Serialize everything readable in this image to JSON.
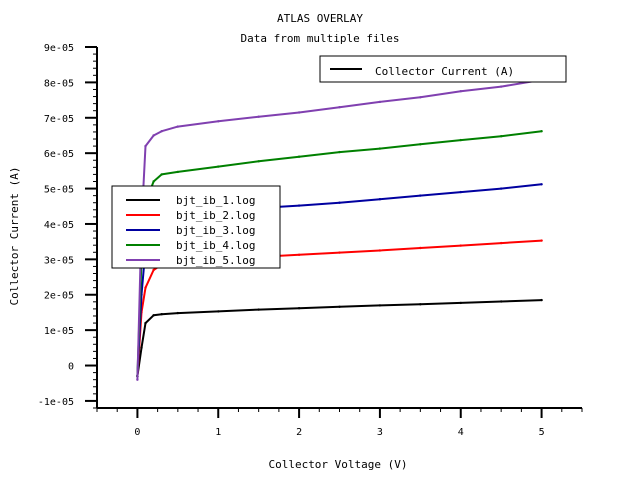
{
  "chart_data": {
    "type": "line",
    "title": "ATLAS OVERLAY",
    "subtitle": "Data from multiple files",
    "xlabel": "Collector Voltage (V)",
    "ylabel": "Collector Current (A)",
    "xlim": [
      -0.5,
      5.5
    ],
    "ylim": [
      -1.2e-05,
      9e-05
    ],
    "x_ticks": [
      0,
      1,
      2,
      3,
      4,
      5
    ],
    "x_tick_labels": [
      "0",
      "1",
      "2",
      "3",
      "4",
      "5"
    ],
    "y_ticks": [
      -1e-05,
      0,
      1e-05,
      2e-05,
      3e-05,
      4e-05,
      5e-05,
      6e-05,
      7e-05,
      8e-05,
      9e-05
    ],
    "y_tick_labels": [
      "-1e-05",
      "0",
      "1e-05",
      "2e-05",
      "3e-05",
      "4e-05",
      "5e-05",
      "6e-05",
      "7e-05",
      "8e-05",
      "9e-05"
    ],
    "grid": false,
    "legend_top": {
      "label": "Collector Current (A)",
      "placement": "top-right"
    },
    "legend_placement": "left",
    "series": [
      {
        "name": "bjt_ib_1.log",
        "color": "#000000",
        "x": [
          0,
          0.05,
          0.1,
          0.2,
          0.3,
          0.5,
          1,
          1.5,
          2,
          2.5,
          3,
          3.5,
          4,
          4.5,
          5
        ],
        "y": [
          -3e-06,
          5e-06,
          1.2e-05,
          1.42e-05,
          1.45e-05,
          1.48e-05,
          1.53e-05,
          1.58e-05,
          1.62e-05,
          1.66e-05,
          1.7e-05,
          1.73e-05,
          1.77e-05,
          1.81e-05,
          1.85e-05
        ]
      },
      {
        "name": "bjt_ib_2.log",
        "color": "#ff0000",
        "x": [
          0,
          0.05,
          0.1,
          0.2,
          0.3,
          0.5,
          1,
          1.5,
          2,
          2.5,
          3,
          3.5,
          4,
          4.5,
          5
        ],
        "y": [
          -3e-06,
          1.5e-05,
          2.2e-05,
          2.7e-05,
          2.85e-05,
          2.92e-05,
          3e-05,
          3.07e-05,
          3.13e-05,
          3.19e-05,
          3.25e-05,
          3.32e-05,
          3.39e-05,
          3.46e-05,
          3.53e-05
        ]
      },
      {
        "name": "bjt_ib_3.log",
        "color": "#0000a0",
        "x": [
          0,
          0.05,
          0.1,
          0.2,
          0.3,
          0.5,
          1,
          1.5,
          2,
          2.5,
          3,
          3.5,
          4,
          4.5,
          5
        ],
        "y": [
          -3e-06,
          2e-05,
          3.3e-05,
          3.9e-05,
          4.1e-05,
          4.22e-05,
          4.35e-05,
          4.45e-05,
          4.52e-05,
          4.6e-05,
          4.7e-05,
          4.8e-05,
          4.9e-05,
          5e-05,
          5.12e-05
        ]
      },
      {
        "name": "bjt_ib_4.log",
        "color": "#008000",
        "x": [
          0,
          0.05,
          0.1,
          0.2,
          0.3,
          0.5,
          1,
          1.5,
          2,
          2.5,
          3,
          3.5,
          4,
          4.5,
          5
        ],
        "y": [
          -3e-06,
          3e-05,
          4.6e-05,
          5.2e-05,
          5.4e-05,
          5.47e-05,
          5.62e-05,
          5.77e-05,
          5.9e-05,
          6.03e-05,
          6.13e-05,
          6.25e-05,
          6.37e-05,
          6.48e-05,
          6.62e-05
        ]
      },
      {
        "name": "bjt_ib_5.log",
        "color": "#8040b0",
        "x": [
          0,
          0.05,
          0.1,
          0.2,
          0.3,
          0.5,
          1,
          1.5,
          2,
          2.5,
          3,
          3.5,
          4,
          4.5,
          5
        ],
        "y": [
          -4e-06,
          4e-05,
          6.2e-05,
          6.5e-05,
          6.62e-05,
          6.75e-05,
          6.9e-05,
          7.03e-05,
          7.15e-05,
          7.3e-05,
          7.45e-05,
          7.58e-05,
          7.75e-05,
          7.88e-05,
          8.07e-05
        ]
      }
    ]
  }
}
